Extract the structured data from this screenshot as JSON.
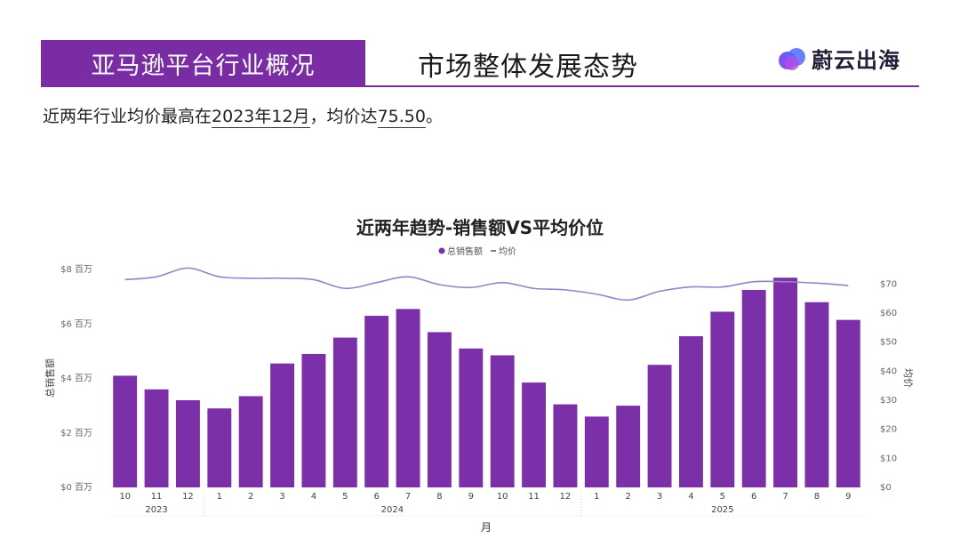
{
  "header": {
    "tag": "亚马逊平台行业概况",
    "title": "市场整体发展态势",
    "logo_text": "蔚云出海"
  },
  "summary": {
    "prefix": "近两年行业均价最高在",
    "peak_month": "2023年12月",
    "middle": "，均价达",
    "peak_price": "75.50",
    "suffix": "。"
  },
  "colors": {
    "brand": "#7a2ca5",
    "bar": "#7b2fa8",
    "line": "#8f86c8"
  },
  "chart_data": {
    "type": "bar",
    "title": "近两年趋势-销售额VS平均价位",
    "legend": [
      {
        "name": "总销售额",
        "marker": "dot"
      },
      {
        "name": "均价",
        "marker": "dash"
      }
    ],
    "legend_position": "top-center",
    "xlabel": "月",
    "ylabel": "总销售额",
    "y2label": "均价",
    "categories": [
      "10",
      "11",
      "12",
      "1",
      "2",
      "3",
      "4",
      "5",
      "6",
      "7",
      "8",
      "9",
      "10",
      "11",
      "12",
      "1",
      "2",
      "3",
      "4",
      "5",
      "6",
      "7",
      "8",
      "9"
    ],
    "years": [
      {
        "label": "2023",
        "span": [
          0,
          2
        ]
      },
      {
        "label": "2024",
        "span": [
          3,
          14
        ]
      },
      {
        "label": "2025",
        "span": [
          15,
          23
        ]
      }
    ],
    "y_ticks": [
      "$0 百万",
      "$2 百万",
      "$4 百万",
      "$6 百万",
      "$8 百万"
    ],
    "y_tick_values": [
      0,
      2,
      4,
      6,
      8
    ],
    "y2_ticks": [
      "$0",
      "$10",
      "$20",
      "$30",
      "$40",
      "$50",
      "$60",
      "$70"
    ],
    "y2_tick_values": [
      0,
      10,
      20,
      30,
      40,
      50,
      60,
      70
    ],
    "ylim": [
      0,
      8
    ],
    "y2lim": [
      0,
      75
    ],
    "series": [
      {
        "name": "总销售额",
        "type": "bar",
        "unit": "百万美元",
        "values": [
          4.1,
          3.6,
          3.2,
          2.9,
          3.35,
          4.55,
          4.9,
          5.5,
          6.3,
          6.55,
          5.7,
          5.1,
          4.85,
          3.85,
          3.05,
          2.6,
          3.0,
          4.5,
          5.55,
          6.45,
          7.25,
          7.7,
          6.8,
          6.15
        ]
      },
      {
        "name": "均价",
        "type": "line",
        "unit": "美元",
        "values": [
          71.5,
          72.5,
          75.5,
          72.5,
          72.0,
          72.0,
          71.5,
          68.5,
          70.5,
          72.5,
          69.8,
          68.8,
          70.5,
          68.5,
          68.0,
          66.5,
          64.5,
          67.5,
          69.0,
          69.0,
          70.8,
          70.8,
          70.3,
          69.5
        ]
      }
    ],
    "grid": false
  }
}
